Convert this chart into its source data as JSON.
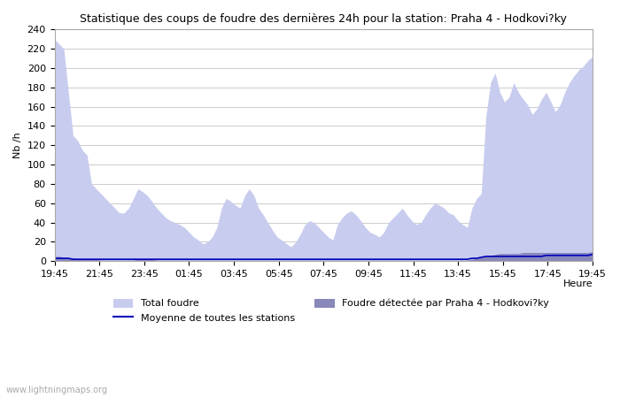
{
  "title": "Statistique des coups de foudre des dernières 24h pour la station: Praha 4 - Hodkoviéky",
  "title_text": "Statistique des coups de foudre des dernières 24h pour la station: Praha 4 - Hodkovi?ky",
  "xlabel": "Heure",
  "ylabel": "Nb /h",
  "ylim": [
    0,
    240
  ],
  "yticks": [
    0,
    20,
    40,
    60,
    80,
    100,
    120,
    140,
    160,
    180,
    200,
    220,
    240
  ],
  "xtick_labels": [
    "19:45",
    "21:45",
    "23:45",
    "01:45",
    "03:45",
    "05:45",
    "07:45",
    "09:45",
    "11:45",
    "13:45",
    "15:45",
    "17:45",
    "19:45"
  ],
  "background_color": "#ffffff",
  "fill_color_total": "#c8ccee",
  "fill_color_local": "#8888bb",
  "line_color_mean": "#0000bb",
  "watermark": "www.lightningmaps.org",
  "legend_total": "Total foudre",
  "legend_local": "Foudre détectée par Praha 4 - Hodkovi?ky",
  "legend_mean": "Moyenne de toutes les stations",
  "total_foudre": [
    230,
    225,
    220,
    175,
    130,
    125,
    115,
    110,
    80,
    75,
    70,
    65,
    60,
    55,
    50,
    50,
    55,
    65,
    75,
    72,
    68,
    62,
    55,
    50,
    45,
    42,
    40,
    38,
    35,
    30,
    25,
    22,
    18,
    20,
    25,
    35,
    55,
    65,
    62,
    58,
    55,
    68,
    75,
    68,
    55,
    48,
    40,
    32,
    25,
    22,
    18,
    15,
    20,
    28,
    38,
    42,
    40,
    35,
    30,
    25,
    22,
    38,
    45,
    50,
    52,
    48,
    42,
    35,
    30,
    28,
    25,
    30,
    40,
    45,
    50,
    55,
    48,
    42,
    38,
    40,
    48,
    55,
    60,
    58,
    55,
    50,
    48,
    42,
    38,
    35,
    55,
    65,
    70,
    150,
    185,
    195,
    175,
    165,
    170,
    185,
    175,
    168,
    162,
    152,
    158,
    168,
    175,
    165,
    155,
    162,
    175,
    185,
    192,
    198,
    202,
    208,
    212
  ],
  "local_foudre": [
    5,
    5,
    4,
    3,
    3,
    2,
    2,
    2,
    2,
    2,
    1,
    1,
    1,
    1,
    1,
    1,
    1,
    1,
    2,
    2,
    2,
    2,
    1,
    1,
    1,
    1,
    1,
    1,
    1,
    1,
    1,
    1,
    1,
    1,
    1,
    1,
    1,
    1,
    1,
    1,
    1,
    1,
    1,
    1,
    1,
    1,
    1,
    1,
    1,
    1,
    1,
    1,
    1,
    1,
    1,
    1,
    1,
    1,
    1,
    1,
    1,
    1,
    1,
    1,
    1,
    1,
    1,
    1,
    1,
    1,
    1,
    1,
    1,
    1,
    1,
    1,
    1,
    1,
    1,
    1,
    1,
    1,
    1,
    1,
    1,
    1,
    1,
    1,
    1,
    1,
    2,
    3,
    4,
    5,
    6,
    7,
    8,
    8,
    8,
    8,
    8,
    9,
    9,
    9,
    9,
    9,
    9,
    9,
    9,
    9,
    9,
    9,
    9,
    9,
    9,
    9,
    10
  ],
  "mean_foudre": [
    3,
    3,
    3,
    3,
    2,
    2,
    2,
    2,
    2,
    2,
    2,
    2,
    2,
    2,
    2,
    2,
    2,
    2,
    2,
    2,
    2,
    2,
    2,
    2,
    2,
    2,
    2,
    2,
    2,
    2,
    2,
    2,
    2,
    2,
    2,
    2,
    2,
    2,
    2,
    2,
    2,
    2,
    2,
    2,
    2,
    2,
    2,
    2,
    2,
    2,
    2,
    2,
    2,
    2,
    2,
    2,
    2,
    2,
    2,
    2,
    2,
    2,
    2,
    2,
    2,
    2,
    2,
    2,
    2,
    2,
    2,
    2,
    2,
    2,
    2,
    2,
    2,
    2,
    2,
    2,
    2,
    2,
    2,
    2,
    2,
    2,
    2,
    2,
    2,
    2,
    3,
    3,
    4,
    5,
    5,
    5,
    5,
    5,
    5,
    5,
    5,
    5,
    5,
    5,
    5,
    5,
    6,
    6,
    6,
    6,
    6,
    6,
    6,
    6,
    6,
    6,
    7
  ]
}
